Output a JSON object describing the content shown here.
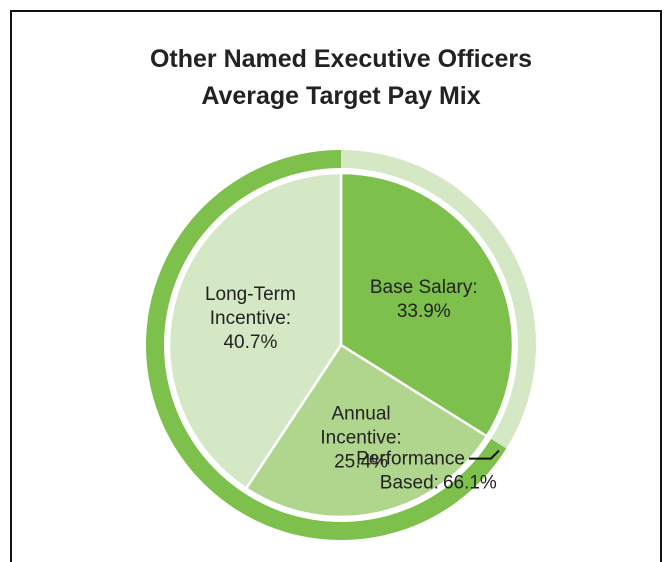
{
  "chart_data": {
    "type": "pie",
    "title_lines": [
      "Other Named Executive Officers",
      "Average Target Pay Mix"
    ],
    "title_color": "#7dc04b",
    "categories": [
      "Base Salary:",
      "Annual Incentive:",
      "Long-Term Incentive:"
    ],
    "values": [
      33.9,
      25.4,
      40.7
    ],
    "value_labels": [
      "33.9%",
      "25.4%",
      "40.7%"
    ],
    "colors": [
      "#7dc04b",
      "#b0d68e",
      "#d5e8c5"
    ],
    "ring": {
      "name": "Performance Based:",
      "value": 66.1,
      "value_label": "66.1%",
      "color": "#7dc04b",
      "rest_color": "#d5e8c5"
    }
  }
}
